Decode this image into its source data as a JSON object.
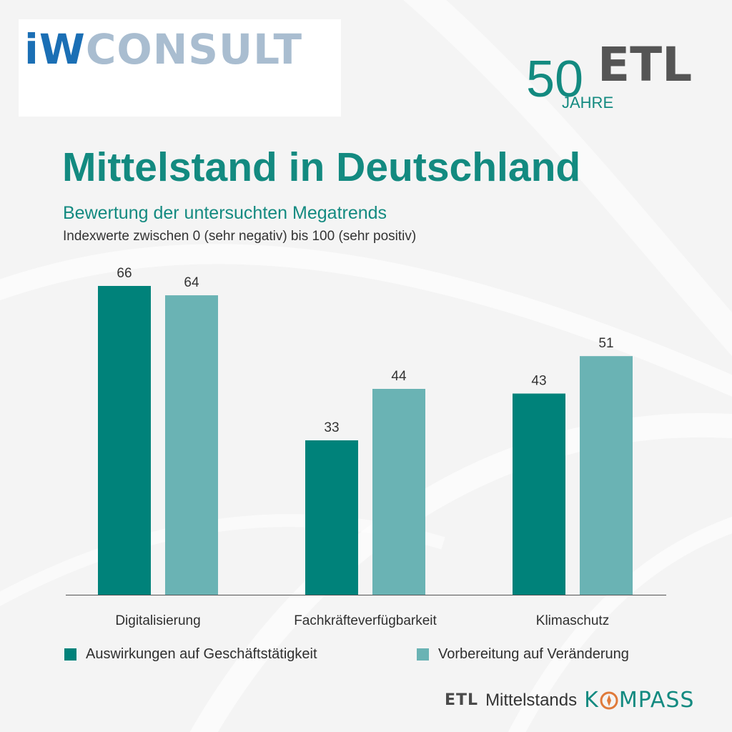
{
  "logos": {
    "iw_part1": "iW",
    "iw_part2": "CONSULT",
    "etl_digits": "50",
    "etl_name": "ETL",
    "etl_years": "JAHRE"
  },
  "title": "Mittelstand in Deutschland",
  "subtitle": "Bewertung der untersuchten Megatrends",
  "note": "Indexwerte zwischen 0 (sehr negativ) bis 100 (sehr positiv)",
  "colors": {
    "accent": "#138a80",
    "series1": "#00827a",
    "series2": "#6ab3b4",
    "iw_blue": "#1b6fb5"
  },
  "chart_data": {
    "type": "bar",
    "categories": [
      "Digitalisierung",
      "Fachkräfteverfügbarkeit",
      "Klimaschutz"
    ],
    "series": [
      {
        "name": "Auswirkungen auf Geschäftstätigkeit",
        "values": [
          66,
          33,
          43
        ]
      },
      {
        "name": "Vorbereitung auf Veränderung",
        "values": [
          64,
          44,
          51
        ]
      }
    ],
    "ylim": [
      0,
      66
    ],
    "grid": false,
    "legend": "bottom",
    "data_labels": true
  },
  "footer": {
    "etl": "ETL",
    "text": "Mittelstands",
    "kompass_1": "K",
    "kompass_2": "MPASS",
    "icon": "compass-icon"
  }
}
